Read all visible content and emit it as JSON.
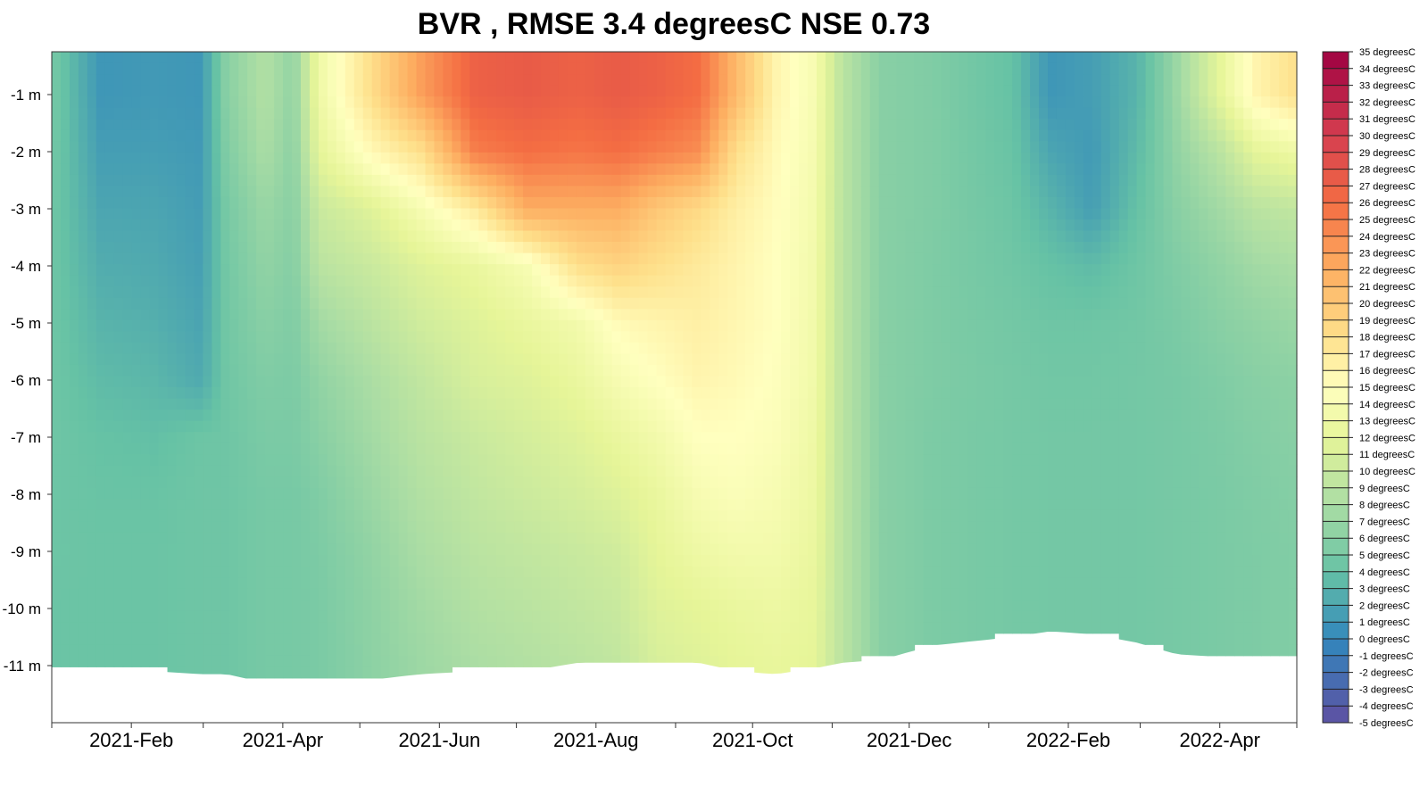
{
  "chart_data": {
    "type": "heatmap",
    "title": "BVR , RMSE 3.4 degreesC NSE 0.73",
    "xlabel": "",
    "ylabel": "",
    "x_tick_labels": [
      "2021-Feb",
      "2021-Apr",
      "2021-Jun",
      "2021-Aug",
      "2021-Oct",
      "2021-Dec",
      "2022-Feb",
      "2022-Apr"
    ],
    "x_tick_dates": [
      "2021-02-01",
      "2021-04-01",
      "2021-06-01",
      "2021-08-01",
      "2021-10-01",
      "2021-12-01",
      "2022-02-01",
      "2022-04-01"
    ],
    "x_range": [
      "2021-01-01",
      "2022-05-01"
    ],
    "y_tick_labels": [
      "-1 m",
      "-2 m",
      "-3 m",
      "-4 m",
      "-5 m",
      "-6 m",
      "-7 m",
      "-8 m",
      "-9 m",
      "-10 m",
      "-11 m"
    ],
    "y_tick_values": [
      -1,
      -2,
      -3,
      -4,
      -5,
      -6,
      -7,
      -8,
      -9,
      -10,
      -11
    ],
    "y_range": [
      -12,
      -0.25
    ],
    "colorbar": {
      "labels": [
        "35 degreesC",
        "34 degreesC",
        "33 degreesC",
        "32 degreesC",
        "31 degreesC",
        "30 degreesC",
        "29 degreesC",
        "28 degreesC",
        "27 degreesC",
        "26 degreesC",
        "25 degreesC",
        "24 degreesC",
        "23 degreesC",
        "22 degreesC",
        "21 degreesC",
        "20 degreesC",
        "19 degreesC",
        "18 degreesC",
        "17 degreesC",
        "16 degreesC",
        "15 degreesC",
        "14 degreesC",
        "13 degreesC",
        "12 degreesC",
        "11 degreesC",
        "10 degreesC",
        "9 degreesC",
        "8 degreesC",
        "7 degreesC",
        "6 degreesC",
        "5 degreesC",
        "4 degreesC",
        "3 degreesC",
        "2 degreesC",
        "1 degreesC",
        "0 degreesC",
        "-1 degreesC",
        "-2 degreesC",
        "-3 degreesC",
        "-4 degreesC",
        "-5 degreesC"
      ],
      "min": -5,
      "max": 35
    },
    "palette": [
      "#5e4fa2",
      "#3288bd",
      "#66c2a5",
      "#abdda4",
      "#e6f598",
      "#ffffbf",
      "#fee08b",
      "#fdae61",
      "#f46d43",
      "#d53e4f",
      "#9e0142"
    ],
    "palette_values": [
      -5,
      0,
      4,
      8,
      12,
      15,
      18,
      22,
      26,
      30,
      35
    ],
    "depths": [
      -0.5,
      -1,
      -2,
      -3,
      -4,
      -5,
      -6,
      -7,
      -8,
      -9,
      -10,
      -11
    ],
    "columns": [
      {
        "date": "2021-01-01",
        "bottom": -11.05,
        "temps": [
          5,
          5,
          4.8,
          4.6,
          4.5,
          4.5,
          4.5,
          4.5,
          4.4,
          4.4,
          4.3,
          4.3
        ]
      },
      {
        "date": "2021-01-20",
        "bottom": -11.05,
        "temps": [
          1,
          1,
          1.5,
          2,
          2.5,
          3,
          3.5,
          4,
          4.2,
          4.3,
          4.3,
          4.3
        ]
      },
      {
        "date": "2021-02-10",
        "bottom": -11.1,
        "temps": [
          1.2,
          1.2,
          1.5,
          2,
          2.3,
          2.7,
          3.2,
          3.8,
          4.2,
          4.3,
          4.3,
          4.3
        ]
      },
      {
        "date": "2021-02-28",
        "bottom": -11.15,
        "temps": [
          1,
          1,
          1.2,
          1.4,
          1.6,
          1.9,
          2.3,
          4.4,
          4.5,
          4.5,
          4.5,
          4.5
        ]
      },
      {
        "date": "2021-03-10",
        "bottom": -11.15,
        "temps": [
          6,
          6,
          5.5,
          5,
          4.8,
          4.7,
          4.6,
          4.5,
          4.5,
          4.5,
          4.5,
          4.5
        ]
      },
      {
        "date": "2021-03-25",
        "bottom": -11.3,
        "temps": [
          8.5,
          8.5,
          8,
          7,
          6.5,
          6,
          5.5,
          5.2,
          5,
          5,
          5,
          5
        ]
      },
      {
        "date": "2021-04-05",
        "bottom": -11.3,
        "temps": [
          6.5,
          6.5,
          6.2,
          6,
          5.8,
          5.5,
          5.3,
          5.2,
          5,
          5,
          5,
          5
        ]
      },
      {
        "date": "2021-04-15",
        "bottom": -11.25,
        "temps": [
          13,
          13,
          12,
          10,
          9,
          7.5,
          6.5,
          6,
          5.5,
          5.3,
          5.2,
          5.2
        ]
      },
      {
        "date": "2021-05-05",
        "bottom": -11.25,
        "temps": [
          18,
          18,
          15.5,
          11.5,
          10,
          9,
          8,
          7.5,
          7,
          6.5,
          6.3,
          6.2
        ]
      },
      {
        "date": "2021-05-25",
        "bottom": -11.15,
        "temps": [
          23,
          23,
          18,
          14,
          11.5,
          10.5,
          9.5,
          9,
          8.5,
          8,
          7.5,
          7.2
        ]
      },
      {
        "date": "2021-06-15",
        "bottom": -11.1,
        "temps": [
          27,
          27,
          25,
          17,
          12.5,
          11.5,
          11,
          10,
          9.5,
          9,
          8.5,
          8
        ]
      },
      {
        "date": "2021-07-05",
        "bottom": -11.1,
        "temps": [
          27.5,
          27.5,
          26,
          22,
          14,
          12.5,
          11.5,
          10.8,
          10.2,
          9.5,
          9,
          8.5
        ]
      },
      {
        "date": "2021-07-25",
        "bottom": -10.95,
        "temps": [
          27,
          27,
          25.5,
          22,
          18,
          13.5,
          12.5,
          11.5,
          10.8,
          10,
          9.5,
          9
        ]
      },
      {
        "date": "2021-08-10",
        "bottom": -10.95,
        "temps": [
          27.5,
          27.5,
          26,
          22,
          19,
          15.5,
          14,
          12.5,
          11.5,
          10.5,
          10,
          9.5
        ]
      },
      {
        "date": "2021-08-25",
        "bottom": -10.95,
        "temps": [
          27,
          27,
          25,
          20,
          18,
          16,
          15,
          13.5,
          12.5,
          12,
          11.5,
          11
        ]
      },
      {
        "date": "2021-09-10",
        "bottom": -10.95,
        "temps": [
          26,
          26,
          24,
          18.5,
          17,
          16.5,
          16,
          15,
          14,
          13,
          12,
          11.5
        ]
      },
      {
        "date": "2021-09-25",
        "bottom": -11.1,
        "temps": [
          21,
          21,
          18,
          16.5,
          16,
          15.8,
          15.5,
          15,
          14.5,
          13.5,
          12.5,
          12
        ]
      },
      {
        "date": "2021-10-10",
        "bottom": -11.15,
        "temps": [
          16,
          16,
          15.5,
          15.2,
          15,
          15,
          14.8,
          14.5,
          14,
          13.5,
          12.8,
          12.3
        ]
      },
      {
        "date": "2021-10-25",
        "bottom": -11.05,
        "temps": [
          14,
          14,
          13.8,
          13.6,
          13.5,
          13.4,
          13.3,
          13,
          12.8,
          12.5,
          12.2,
          12
        ]
      },
      {
        "date": "2021-11-05",
        "bottom": -10.95,
        "temps": [
          9,
          9,
          9,
          9,
          9,
          9,
          9,
          9,
          9,
          9,
          9,
          9
        ]
      },
      {
        "date": "2021-11-20",
        "bottom": -10.9,
        "temps": [
          6,
          6,
          6,
          6,
          6,
          6,
          6,
          6,
          6,
          6,
          6,
          6
        ]
      },
      {
        "date": "2021-12-10",
        "bottom": -10.65,
        "temps": [
          5.5,
          5.5,
          5.5,
          5.5,
          5.4,
          5.4,
          5.4,
          5.3,
          5.3,
          5.3,
          5.3,
          5.3
        ]
      },
      {
        "date": "2022-01-10",
        "bottom": -10.5,
        "temps": [
          4,
          4,
          4.2,
          4.4,
          4.6,
          4.8,
          4.9,
          4.9,
          4.9,
          4.9,
          4.9,
          4.9
        ]
      },
      {
        "date": "2022-01-25",
        "bottom": -10.4,
        "temps": [
          1,
          1,
          2,
          3,
          4,
          4.5,
          4.7,
          4.8,
          4.8,
          4.8,
          4.8,
          4.8
        ]
      },
      {
        "date": "2022-02-10",
        "bottom": -10.45,
        "temps": [
          1.5,
          1.5,
          1.2,
          1.5,
          3.5,
          4.5,
          4.7,
          4.8,
          4.8,
          4.8,
          4.8,
          4.8
        ]
      },
      {
        "date": "2022-02-28",
        "bottom": -10.6,
        "temps": [
          3,
          3,
          3.5,
          4,
          4.5,
          4.7,
          4.8,
          4.8,
          4.8,
          4.8,
          4.8,
          4.8
        ]
      },
      {
        "date": "2022-03-15",
        "bottom": -10.8,
        "temps": [
          7,
          7,
          6.5,
          6,
          5.5,
          5.2,
          5,
          5,
          5,
          5,
          5,
          5
        ]
      },
      {
        "date": "2022-04-01",
        "bottom": -10.85,
        "temps": [
          12,
          12,
          9,
          7.5,
          6.5,
          6,
          5.5,
          5.3,
          5.2,
          5.2,
          5.2,
          5.2
        ]
      },
      {
        "date": "2022-04-15",
        "bottom": -10.9,
        "temps": [
          16,
          16,
          12,
          9,
          7.5,
          6.5,
          6,
          5.7,
          5.5,
          5.4,
          5.4,
          5.4
        ]
      },
      {
        "date": "2022-05-01",
        "bottom": -10.85,
        "temps": [
          18,
          18,
          13,
          9.5,
          8,
          7,
          6.2,
          6,
          5.8,
          5.6,
          5.6,
          5.6
        ]
      }
    ]
  }
}
